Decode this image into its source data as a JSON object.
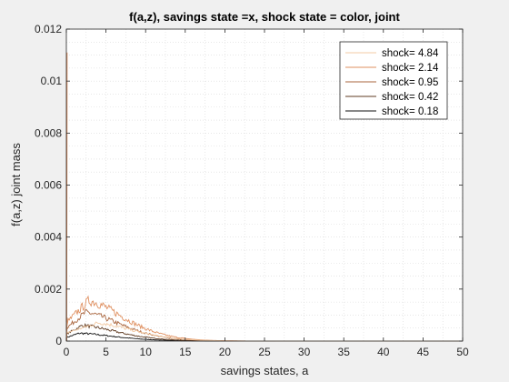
{
  "chart_data": {
    "type": "line",
    "title": "f(a,z), savings state =x, shock state = color, joint",
    "xlabel": "savings states, a",
    "ylabel": "f(a,z) joint mass",
    "xlim": [
      0,
      50
    ],
    "ylim": [
      0,
      0.012
    ],
    "xticks": [
      0,
      5,
      10,
      15,
      20,
      25,
      30,
      35,
      40,
      45,
      50
    ],
    "yticks": [
      0,
      0.002,
      0.004,
      0.006,
      0.008,
      0.01,
      0.012
    ],
    "xtick_labels": [
      "0",
      "5",
      "10",
      "15",
      "20",
      "25",
      "30",
      "35",
      "40",
      "45",
      "50"
    ],
    "ytick_labels": [
      "0",
      "0.002",
      "0.004",
      "0.006",
      "0.008",
      "0.01",
      "0.012"
    ],
    "grid": "minor dotted",
    "legend_position": "top-right",
    "series": [
      {
        "name": "shock=  4.84",
        "color": "#f3cba5",
        "peak": 0.0007,
        "peak_at": 4.0,
        "noise": 8e-05,
        "spike": 0.0
      },
      {
        "name": "shock=  2.14",
        "color": "#df8f5f",
        "peak": 0.00155,
        "peak_at": 2.8,
        "noise": 0.0002,
        "spike": 0.0111
      },
      {
        "name": "shock=  0.95",
        "color": "#a9643c",
        "peak": 0.0011,
        "peak_at": 2.4,
        "noise": 0.00013,
        "spike": 0.0009
      },
      {
        "name": "shock=  0.42",
        "color": "#5f3b22",
        "peak": 0.0006,
        "peak_at": 2.0,
        "noise": 7e-05,
        "spike": 0.0
      },
      {
        "name": "shock=  0.18",
        "color": "#111111",
        "peak": 0.0003,
        "peak_at": 1.6,
        "noise": 4e-05,
        "spike": 0.0
      }
    ]
  }
}
